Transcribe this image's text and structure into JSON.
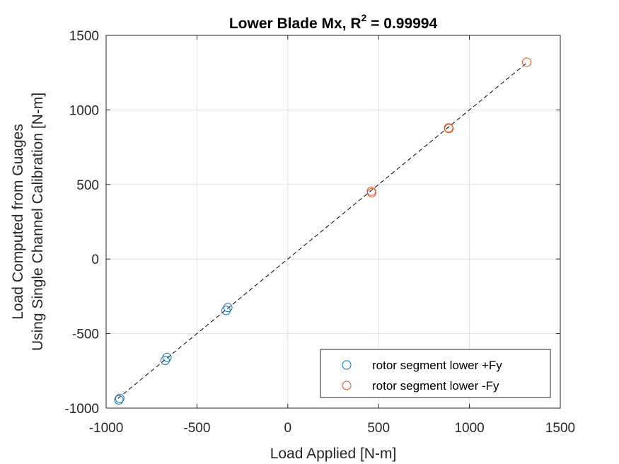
{
  "chart_data": {
    "type": "scatter",
    "title": "Lower Blade Mx, R",
    "title_superscript": "2",
    "title_suffix": " = 0.99994",
    "xlabel": "Load Applied [N-m]",
    "ylabel_lines": [
      "Load Computed from Guages",
      "Using Single Channel Calibration [N-m]"
    ],
    "xlim": [
      -1000,
      1500
    ],
    "ylim": [
      -1000,
      1500
    ],
    "xticks": [
      -1000,
      -500,
      0,
      500,
      1000,
      1500
    ],
    "yticks": [
      -1000,
      -500,
      0,
      500,
      1000,
      1500
    ],
    "xtick_labels": [
      "-1000",
      "-500",
      "0",
      "500",
      "1000",
      "1500"
    ],
    "ytick_labels": [
      "-1000",
      "-500",
      "0",
      "500",
      "1000",
      "1500"
    ],
    "grid": true,
    "legend_position": "bottom-right",
    "series": [
      {
        "name": "rotor segment lower +Fy",
        "color": "#0072BD",
        "marker": "circle",
        "points": [
          [
            -930,
            -945
          ],
          [
            -925,
            -935
          ],
          [
            -675,
            -680
          ],
          [
            -665,
            -660
          ],
          [
            -340,
            -345
          ],
          [
            -330,
            -325
          ]
        ]
      },
      {
        "name": "rotor segment lower -Fy",
        "color": "#D95319",
        "marker": "circle",
        "points": [
          [
            460,
            455
          ],
          [
            462,
            445
          ],
          [
            885,
            880
          ],
          [
            887,
            875
          ],
          [
            1315,
            1320
          ]
        ]
      }
    ],
    "fit_line": {
      "style": "dashed",
      "color": "#000000",
      "x": [
        -935,
        1320
      ],
      "y": [
        -935,
        1320
      ]
    }
  }
}
